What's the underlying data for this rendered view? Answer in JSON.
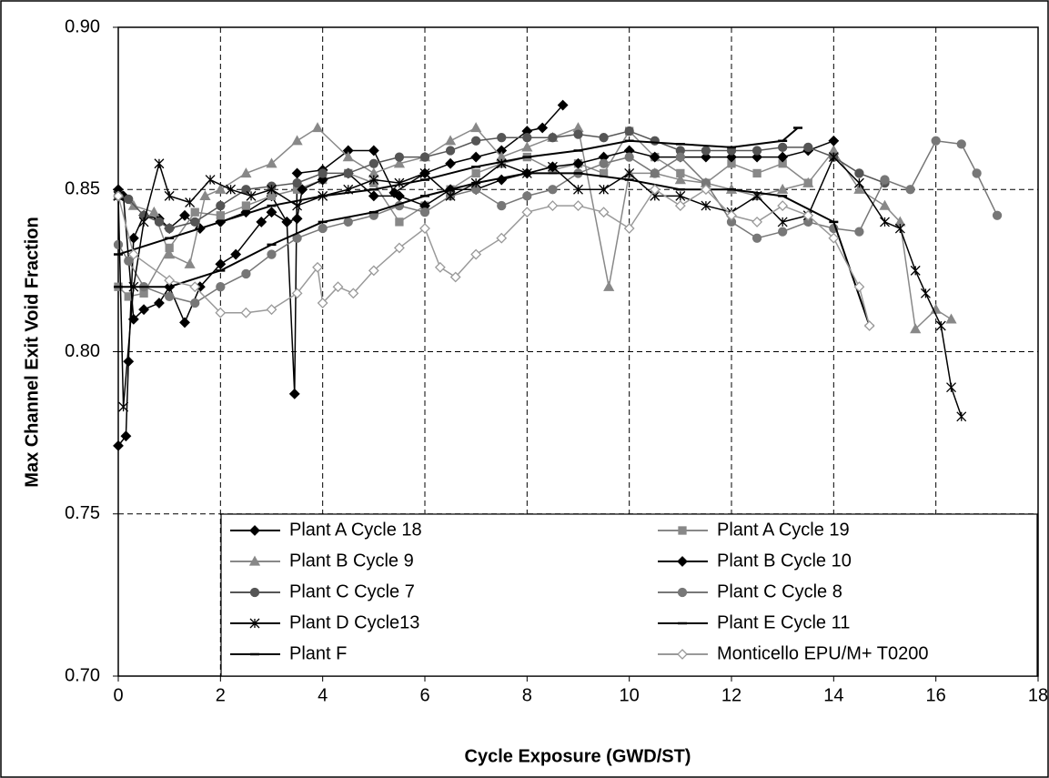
{
  "chart_data": {
    "type": "line",
    "xlabel": "Cycle Exposure (GWD/ST)",
    "ylabel": "Max Channel Exit Void Fraction",
    "xlim": [
      0,
      18
    ],
    "xticks": [
      0,
      2,
      4,
      6,
      8,
      10,
      12,
      14,
      16,
      18
    ],
    "ylim": [
      0.7,
      0.9
    ],
    "yticks": [
      {
        "value": 0.7,
        "label": "0.70"
      },
      0.75,
      {
        "value": 0.8,
        "label": "0.80"
      },
      0.85,
      {
        "value": 0.9,
        "label": "0.90"
      }
    ],
    "grid": true,
    "legend": "bottom",
    "series": [
      {
        "name": "Plant A Cycle 18",
        "color": "#000000",
        "marker": "diamond",
        "x": [
          0,
          0.15,
          0.2,
          0.3,
          0.5,
          0.8,
          1.0,
          1.3,
          1.6,
          2.0,
          2.5,
          3.0,
          3.3,
          3.45,
          3.5,
          4.0,
          4.5,
          5.0,
          5.4,
          6.0,
          6.5,
          7.0,
          7.5,
          8.0,
          8.3,
          8.7
        ],
        "values": [
          0.771,
          0.774,
          0.797,
          0.835,
          0.842,
          0.841,
          0.838,
          0.842,
          0.838,
          0.84,
          0.843,
          0.848,
          0.84,
          0.787,
          0.855,
          0.856,
          0.862,
          0.862,
          0.849,
          0.855,
          0.858,
          0.86,
          0.862,
          0.868,
          0.869,
          0.876
        ]
      },
      {
        "name": "Plant A Cycle 19",
        "color": "#888888",
        "marker": "square",
        "x": [
          0,
          0.2,
          0.5,
          1,
          1.5,
          2,
          2.5,
          3,
          3.5,
          4,
          4.5,
          5,
          5.5,
          6,
          6.5,
          7,
          7.5,
          8,
          8.5,
          9,
          9.5,
          10,
          10.5,
          11,
          11.5,
          12,
          12.5,
          13,
          13.5
        ],
        "values": [
          0.82,
          0.817,
          0.818,
          0.832,
          0.843,
          0.842,
          0.845,
          0.848,
          0.85,
          0.853,
          0.855,
          0.852,
          0.84,
          0.845,
          0.85,
          0.855,
          0.858,
          0.86,
          0.856,
          0.858,
          0.855,
          0.868,
          0.86,
          0.855,
          0.852,
          0.858,
          0.855,
          0.858,
          0.852
        ]
      },
      {
        "name": "Plant B Cycle 9",
        "color": "#888888",
        "marker": "triangle",
        "x": [
          0,
          0.3,
          0.7,
          1.0,
          1.4,
          1.7,
          2.0,
          2.5,
          3.0,
          3.5,
          3.9,
          4.5,
          5,
          5.5,
          6,
          6.5,
          7,
          7.5,
          8,
          8.5,
          9,
          9.6,
          10,
          10.5,
          11,
          11.5,
          12,
          12.5,
          13,
          13.5,
          14,
          14.5,
          15,
          15.3,
          15.6,
          16,
          16.3
        ],
        "values": [
          0.848,
          0.845,
          0.843,
          0.83,
          0.827,
          0.848,
          0.85,
          0.855,
          0.858,
          0.865,
          0.869,
          0.86,
          0.855,
          0.858,
          0.86,
          0.865,
          0.869,
          0.86,
          0.863,
          0.866,
          0.869,
          0.82,
          0.855,
          0.855,
          0.853,
          0.852,
          0.85,
          0.848,
          0.85,
          0.852,
          0.862,
          0.85,
          0.845,
          0.84,
          0.807,
          0.813,
          0.81
        ]
      },
      {
        "name": "Plant B Cycle 10",
        "color": "#000000",
        "marker": "diamond",
        "x": [
          0,
          0.1,
          0.3,
          0.5,
          0.8,
          1.0,
          1.3,
          1.6,
          2.0,
          2.3,
          2.8,
          3.0,
          3.3,
          3.5,
          3.6,
          4,
          4.5,
          5,
          5.5,
          6,
          6.5,
          7,
          7.5,
          8,
          8.5,
          9,
          9.5,
          10,
          10.5,
          11,
          11.5,
          12,
          12.5,
          13,
          13.5,
          14
        ],
        "values": [
          0.85,
          0.848,
          0.81,
          0.813,
          0.815,
          0.82,
          0.809,
          0.82,
          0.827,
          0.83,
          0.84,
          0.843,
          0.84,
          0.841,
          0.85,
          0.853,
          0.855,
          0.848,
          0.848,
          0.845,
          0.85,
          0.85,
          0.853,
          0.855,
          0.857,
          0.858,
          0.86,
          0.862,
          0.86,
          0.86,
          0.86,
          0.86,
          0.86,
          0.86,
          0.862,
          0.865
        ]
      },
      {
        "name": "Plant C Cycle 7",
        "color": "#555555",
        "marker": "circle",
        "x": [
          0,
          0.2,
          0.5,
          0.8,
          1.0,
          1.5,
          2,
          2.5,
          3,
          3.5,
          4,
          4.5,
          5,
          5.5,
          6,
          6.5,
          7,
          7.5,
          8,
          8.5,
          9,
          9.5,
          10,
          10.5,
          11,
          11.5,
          12,
          12.5,
          13,
          13.5,
          14,
          14.5,
          15
        ],
        "values": [
          0.848,
          0.847,
          0.842,
          0.84,
          0.838,
          0.84,
          0.845,
          0.85,
          0.851,
          0.852,
          0.855,
          0.855,
          0.858,
          0.86,
          0.86,
          0.862,
          0.865,
          0.866,
          0.866,
          0.866,
          0.867,
          0.866,
          0.868,
          0.865,
          0.862,
          0.862,
          0.862,
          0.862,
          0.863,
          0.863,
          0.86,
          0.855,
          0.852
        ]
      },
      {
        "name": "Plant C Cycle 8",
        "color": "#777777",
        "marker": "circle",
        "x": [
          0,
          0.2,
          0.5,
          1,
          1.5,
          2,
          2.5,
          3,
          3.5,
          4,
          4.5,
          5,
          5.5,
          6,
          6.5,
          7,
          7.5,
          8,
          8.5,
          9,
          9.5,
          10,
          10.5,
          11,
          11.5,
          12,
          12.5,
          13,
          13.5,
          14,
          14.5,
          15,
          15.5,
          16,
          16.5,
          16.8,
          17.2
        ],
        "values": [
          0.833,
          0.828,
          0.82,
          0.817,
          0.815,
          0.82,
          0.824,
          0.83,
          0.835,
          0.838,
          0.84,
          0.842,
          0.845,
          0.843,
          0.848,
          0.85,
          0.845,
          0.848,
          0.85,
          0.855,
          0.858,
          0.86,
          0.855,
          0.86,
          0.852,
          0.84,
          0.835,
          0.837,
          0.84,
          0.838,
          0.837,
          0.853,
          0.85,
          0.865,
          0.864,
          0.855,
          0.842
        ]
      },
      {
        "name": "Plant D Cycle13",
        "color": "#000000",
        "marker": "star",
        "x": [
          0,
          0.1,
          0.3,
          0.5,
          0.8,
          1.0,
          1.4,
          1.8,
          2.2,
          2.6,
          3,
          3.5,
          4,
          4.5,
          5,
          5.5,
          6,
          6.5,
          7,
          7.5,
          8,
          8.5,
          9,
          9.5,
          10,
          10.5,
          11,
          11.5,
          12,
          12.5,
          13,
          13.5,
          14,
          14.5,
          15,
          15.3,
          15.6,
          15.8,
          16.1,
          16.3,
          16.5
        ],
        "values": [
          0.848,
          0.783,
          0.82,
          0.84,
          0.858,
          0.848,
          0.846,
          0.853,
          0.85,
          0.848,
          0.85,
          0.845,
          0.848,
          0.85,
          0.853,
          0.852,
          0.855,
          0.848,
          0.852,
          0.858,
          0.855,
          0.857,
          0.85,
          0.85,
          0.855,
          0.848,
          0.848,
          0.845,
          0.843,
          0.848,
          0.84,
          0.842,
          0.86,
          0.852,
          0.84,
          0.838,
          0.825,
          0.818,
          0.808,
          0.789,
          0.78
        ]
      },
      {
        "name": "Plant E Cycle 11",
        "color": "#000000",
        "marker": "dash",
        "x": [
          0,
          1,
          2,
          3,
          4,
          5,
          6,
          7,
          8,
          9,
          10,
          11,
          12,
          13,
          13.3
        ],
        "values": [
          0.83,
          0.835,
          0.84,
          0.845,
          0.848,
          0.85,
          0.853,
          0.857,
          0.86,
          0.862,
          0.865,
          0.864,
          0.863,
          0.865,
          0.869
        ]
      },
      {
        "name": "Plant F",
        "color": "#000000",
        "marker": "dash",
        "x": [
          0,
          1,
          2,
          3,
          4,
          5,
          6,
          7,
          8,
          9,
          10,
          11,
          12,
          13,
          14,
          14.7
        ],
        "values": [
          0.82,
          0.82,
          0.825,
          0.833,
          0.84,
          0.843,
          0.848,
          0.852,
          0.855,
          0.855,
          0.853,
          0.85,
          0.85,
          0.848,
          0.84,
          0.808
        ]
      },
      {
        "name": "Monticello EPU/M+ T0200",
        "color": "#999999",
        "marker": "diamond-open",
        "x": [
          0,
          0.3,
          1,
          1.5,
          2,
          2.5,
          3,
          3.5,
          3.9,
          4,
          4.3,
          4.6,
          5,
          5.5,
          6,
          6.3,
          6.6,
          7,
          7.5,
          8,
          8.5,
          9,
          9.5,
          10,
          10.5,
          11,
          11.5,
          12,
          12.5,
          13,
          13.5,
          14,
          14.5,
          14.7
        ],
        "values": [
          0.848,
          0.83,
          0.822,
          0.82,
          0.812,
          0.812,
          0.813,
          0.818,
          0.826,
          0.815,
          0.82,
          0.818,
          0.825,
          0.832,
          0.838,
          0.826,
          0.823,
          0.83,
          0.835,
          0.843,
          0.845,
          0.845,
          0.843,
          0.838,
          0.85,
          0.845,
          0.85,
          0.842,
          0.84,
          0.845,
          0.842,
          0.835,
          0.82,
          0.808
        ]
      }
    ]
  }
}
